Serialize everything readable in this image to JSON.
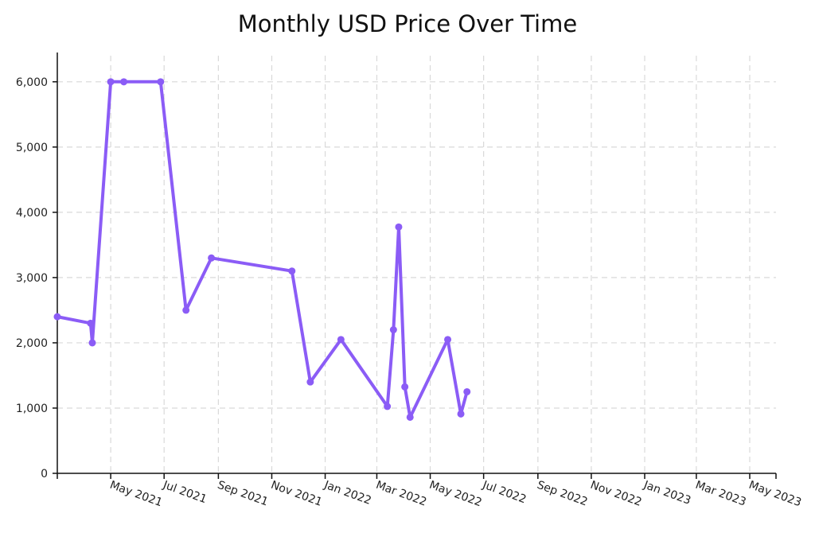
{
  "chart_data": {
    "type": "line",
    "title": "Monthly USD Price Over Time",
    "xlabel": "",
    "ylabel": "",
    "x_type": "date",
    "xlim": [
      "2021-03-01",
      "2023-05-31"
    ],
    "ylim": [
      0,
      6400
    ],
    "y_ticks": [
      0,
      1000,
      2000,
      3000,
      4000,
      5000,
      6000
    ],
    "y_tick_labels": [
      "0",
      "1,000",
      "2,000",
      "3,000",
      "4,000",
      "5,000",
      "6,000"
    ],
    "x_ticks": [
      "2021-05-01",
      "2021-07-01",
      "2021-09-01",
      "2021-11-01",
      "2022-01-01",
      "2022-03-01",
      "2022-05-01",
      "2022-07-01",
      "2022-09-01",
      "2022-11-01",
      "2023-01-01",
      "2023-03-01",
      "2023-05-01"
    ],
    "x_tick_labels": [
      "May 2021",
      "Jul 2021",
      "Sep 2021",
      "Nov 2021",
      "Jan 2022",
      "Mar 2022",
      "May 2022",
      "Jul 2022",
      "Sep 2022",
      "Nov 2022",
      "Jan 2023",
      "Mar 2023",
      "May 2023"
    ],
    "grid": true,
    "legend": "none",
    "color": "#8b5cf6",
    "series": [
      {
        "values": [
          {
            "x": "2021-03-01",
            "y": 2400
          },
          {
            "x": "2021-04-08",
            "y": 2300
          },
          {
            "x": "2021-04-10",
            "y": 2000
          },
          {
            "x": "2021-05-01",
            "y": 6000
          },
          {
            "x": "2021-05-16",
            "y": 6000
          },
          {
            "x": "2021-06-27",
            "y": 6000
          },
          {
            "x": "2021-07-26",
            "y": 2500
          },
          {
            "x": "2021-08-24",
            "y": 3300
          },
          {
            "x": "2021-11-24",
            "y": 3100
          },
          {
            "x": "2021-12-15",
            "y": 1400
          },
          {
            "x": "2022-01-19",
            "y": 2050
          },
          {
            "x": "2022-03-13",
            "y": 1025
          },
          {
            "x": "2022-03-20",
            "y": 2200
          },
          {
            "x": "2022-03-26",
            "y": 3775
          },
          {
            "x": "2022-04-02",
            "y": 1325
          },
          {
            "x": "2022-04-08",
            "y": 860
          },
          {
            "x": "2022-05-21",
            "y": 2050
          },
          {
            "x": "2022-06-05",
            "y": 910
          },
          {
            "x": "2022-06-12",
            "y": 1250
          }
        ]
      }
    ]
  }
}
